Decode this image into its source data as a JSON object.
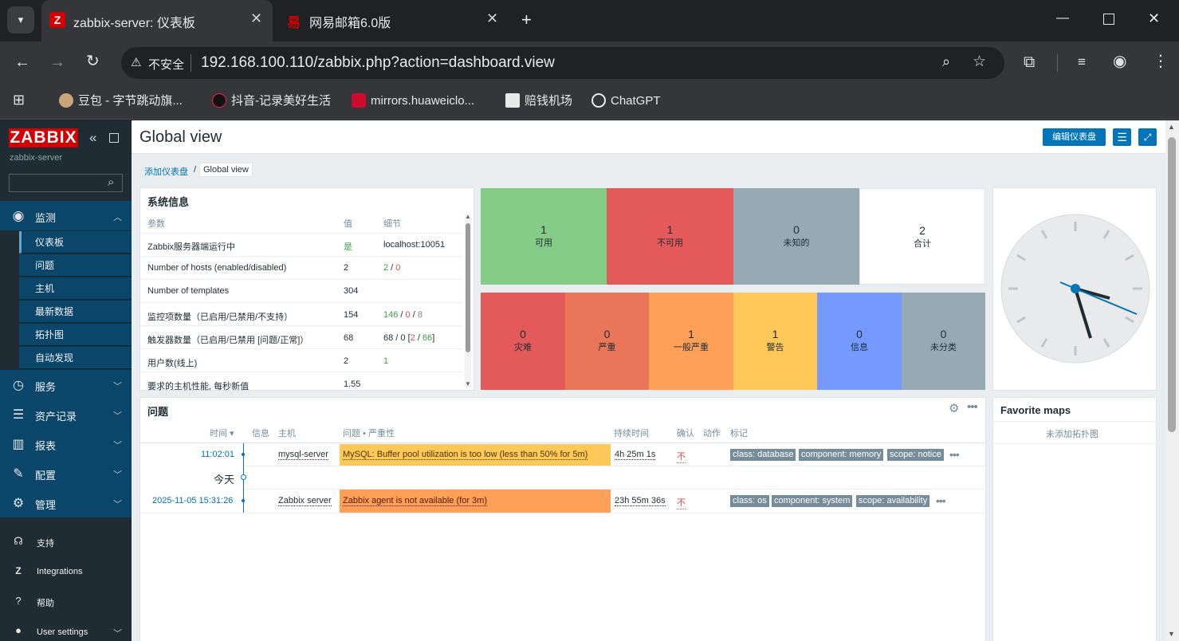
{
  "browser": {
    "tabs": [
      {
        "title": "zabbix-server: 仪表板",
        "active": true
      },
      {
        "title": "网易邮箱6.0版",
        "active": false
      }
    ],
    "url_security": "不安全",
    "url": "192.168.100.110/zabbix.php?action=dashboard.view",
    "bookmarks": [
      "豆包 - 字节跳动旗...",
      "抖音-记录美好生活",
      "mirrors.huaweiclo...",
      "赔钱机场",
      "ChatGPT"
    ]
  },
  "sidebar": {
    "logo": "ZABBIX",
    "server": "zabbix-server",
    "monitoring": "监测",
    "monitoring_items": [
      "仪表板",
      "问题",
      "主机",
      "最新数据",
      "拓扑图",
      "自动发现"
    ],
    "sections": [
      "服务",
      "资产记录",
      "报表",
      "配置",
      "管理"
    ],
    "bottom": [
      "支持",
      "Integrations",
      "帮助",
      "User settings"
    ]
  },
  "header": {
    "title": "Global view",
    "edit_button": "编辑仪表盘",
    "breadcrumb_parent": "添加仪表盘",
    "breadcrumb_current": "Global view"
  },
  "sysinfo": {
    "title": "系统信息",
    "headers": [
      "参数",
      "值",
      "细节"
    ],
    "rows": [
      {
        "param": "Zabbix服务器端运行中",
        "value": "是",
        "detail": "localhost:10051"
      },
      {
        "param": "Number of hosts (enabled/disabled)",
        "value": "2",
        "d1": "2",
        "d2": "0"
      },
      {
        "param": "Number of templates",
        "value": "304",
        "detail": ""
      },
      {
        "param": "监控项数量（已启用/已禁用/不支持）",
        "value": "154",
        "d1": "146",
        "d2": "0",
        "d3": "8"
      },
      {
        "param": "触发器数量（已启用/已禁用 [问题/正常]）",
        "value": "68",
        "d_pre": "68 / 0 [",
        "d1": "2",
        "d_mid": " / ",
        "d2": "66",
        "d_post": "]"
      },
      {
        "param": "用户数(线上)",
        "value": "2",
        "d1": "1"
      },
      {
        "param": "要求的主机性能, 每秒新值",
        "value": "1.55",
        "detail": ""
      }
    ]
  },
  "host_availability": [
    {
      "count": "1",
      "label": "可用",
      "color": "#86cc89"
    },
    {
      "count": "1",
      "label": "不可用",
      "color": "#e45959"
    },
    {
      "count": "0",
      "label": "未知的",
      "color": "#97aab3"
    },
    {
      "count": "2",
      "label": "合计",
      "color": "#ffffff"
    }
  ],
  "problems_by_severity": [
    {
      "count": "0",
      "label": "灾难",
      "color": "#e45959"
    },
    {
      "count": "0",
      "label": "严重",
      "color": "#e97659"
    },
    {
      "count": "1",
      "label": "一般严重",
      "color": "#ffa059"
    },
    {
      "count": "1",
      "label": "警告",
      "color": "#ffc859"
    },
    {
      "count": "0",
      "label": "信息",
      "color": "#7499ff"
    },
    {
      "count": "0",
      "label": "未分类",
      "color": "#97aab3"
    }
  ],
  "problems": {
    "title": "问题",
    "headers": [
      "时间 ▾",
      "信息",
      "主机",
      "问题 • 严重性",
      "持续时间",
      "确认",
      "动作",
      "标记"
    ],
    "day_marker": "今天",
    "rows": [
      {
        "time": "11:02:01",
        "host": "mysql-server",
        "problem": "MySQL: Buffer pool utilization is too low (less than 50% for 5m)",
        "duration": "4h 25m 1s",
        "ack": "不",
        "tags": [
          "class: database",
          "component: memory",
          "scope: notice"
        ],
        "color": "#ffc859"
      },
      {
        "time": "2025-11-05 15:31:26",
        "host": "Zabbix server",
        "problem": "Zabbix agent is not available (for 3m)",
        "duration": "23h 55m 36s",
        "ack": "不",
        "tags": [
          "class: os",
          "component: system",
          "scope: availability"
        ],
        "color": "#ffa059"
      }
    ]
  },
  "favmaps": {
    "title": "Favorite maps",
    "empty": "未添加拓扑图"
  }
}
